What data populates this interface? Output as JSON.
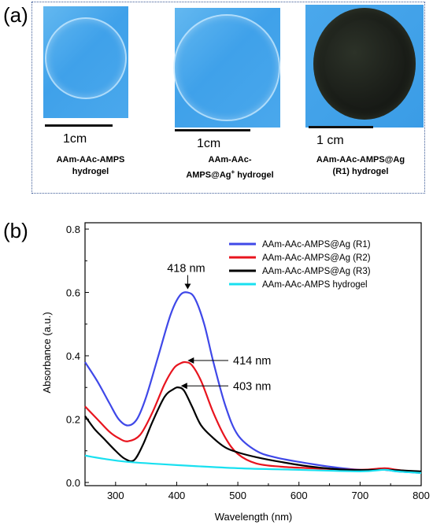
{
  "panel_a": {
    "label": "(a)",
    "photos": [
      {
        "scale_label": "1cm",
        "caption_line1": "AAm-AAc-AMPS",
        "caption_line2": "hydrogel"
      },
      {
        "scale_label": "1cm",
        "caption_line1": "AAm-AAc-",
        "caption_line2_main": "AMPS@Ag",
        "caption_line2_sup": "+",
        "caption_line2_tail": " hydrogel"
      },
      {
        "scale_label": "1 cm",
        "caption_line1": "AAm-AAc-AMPS@Ag",
        "caption_line2": "(R1) hydrogel"
      }
    ]
  },
  "panel_b": {
    "label": "(b)"
  },
  "chart_data": {
    "type": "line",
    "title": "",
    "xlabel": "Wavelength (nm)",
    "ylabel": "Absorbance (a.u.)",
    "xlim": [
      250,
      800
    ],
    "ylim": [
      -0.01,
      0.82
    ],
    "xticks": [
      300,
      400,
      500,
      600,
      700,
      800
    ],
    "yticks": [
      0.0,
      0.2,
      0.4,
      0.6,
      0.8
    ],
    "xtick_labels": [
      "300",
      "400",
      "500",
      "600",
      "700",
      "800"
    ],
    "ytick_labels": [
      "0.0",
      "0.2",
      "0.4",
      "0.6",
      "0.8"
    ],
    "grid": false,
    "legend_position": "top-right",
    "series": [
      {
        "name": "AAm-AAc-AMPS@Ag (R1)",
        "color": "#3f48e8",
        "x": [
          250,
          270,
          290,
          305,
          320,
          335,
          350,
          370,
          390,
          405,
          418,
          430,
          445,
          460,
          480,
          500,
          530,
          560,
          600,
          650,
          700,
          740,
          760,
          800
        ],
        "y": [
          0.38,
          0.32,
          0.25,
          0.2,
          0.18,
          0.2,
          0.27,
          0.4,
          0.53,
          0.59,
          0.6,
          0.58,
          0.5,
          0.38,
          0.24,
          0.15,
          0.1,
          0.08,
          0.065,
          0.05,
          0.04,
          0.04,
          0.035,
          0.03
        ]
      },
      {
        "name": "AAm-AAc-AMPS@Ag (R2)",
        "color": "#e8141e",
        "x": [
          250,
          270,
          290,
          305,
          320,
          340,
          360,
          380,
          395,
          405,
          414,
          425,
          440,
          460,
          480,
          500,
          530,
          570,
          620,
          700,
          740,
          760,
          800
        ],
        "y": [
          0.24,
          0.2,
          0.16,
          0.14,
          0.13,
          0.15,
          0.22,
          0.31,
          0.36,
          0.375,
          0.38,
          0.37,
          0.32,
          0.22,
          0.14,
          0.09,
          0.06,
          0.05,
          0.045,
          0.04,
          0.045,
          0.04,
          0.03
        ]
      },
      {
        "name": "AAm-AAc-AMPS@Ag (R3)",
        "color": "#000000",
        "x": [
          250,
          265,
          280,
          300,
          315,
          330,
          345,
          360,
          380,
          395,
          403,
          412,
          425,
          440,
          460,
          480,
          500,
          530,
          570,
          620,
          680,
          740,
          800
        ],
        "y": [
          0.21,
          0.17,
          0.14,
          0.1,
          0.075,
          0.07,
          0.12,
          0.19,
          0.27,
          0.295,
          0.3,
          0.29,
          0.24,
          0.18,
          0.14,
          0.11,
          0.095,
          0.08,
          0.065,
          0.05,
          0.04,
          0.04,
          0.035
        ]
      },
      {
        "name": "AAm-AAc-AMPS hydrogel",
        "color": "#19e0f0",
        "x": [
          250,
          280,
          320,
          400,
          500,
          600,
          700,
          740,
          760,
          800
        ],
        "y": [
          0.085,
          0.075,
          0.065,
          0.055,
          0.045,
          0.04,
          0.035,
          0.04,
          0.035,
          0.03
        ]
      }
    ],
    "annotations": [
      {
        "text": "418 nm",
        "x": 418,
        "y": 0.6
      },
      {
        "text": "414 nm",
        "x": 414,
        "y": 0.38
      },
      {
        "text": "403 nm",
        "x": 403,
        "y": 0.3
      }
    ]
  }
}
